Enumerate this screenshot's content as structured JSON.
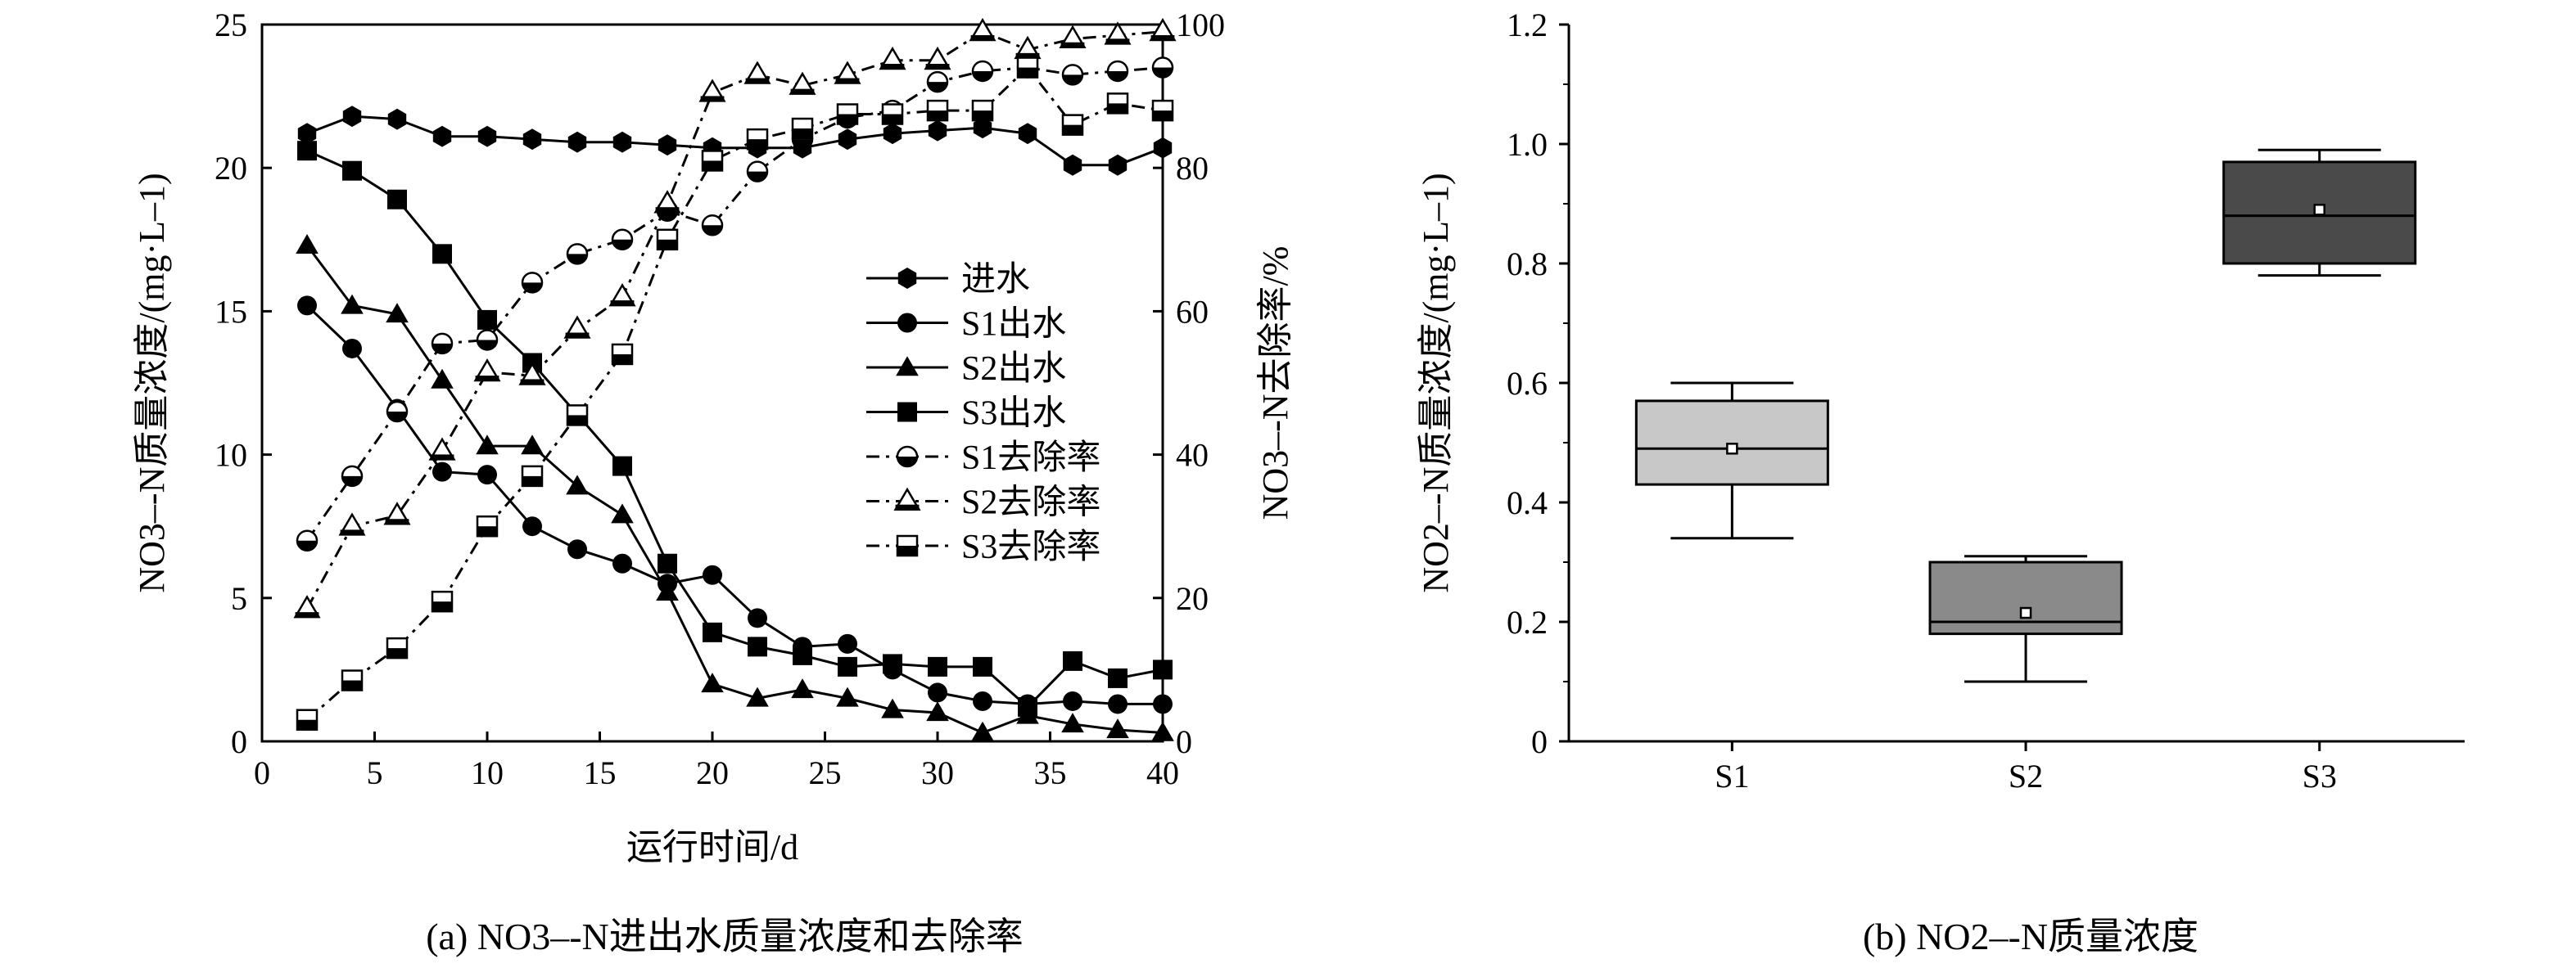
{
  "chart_data": [
    {
      "type": "line",
      "caption": "(a) NO3–-N进出水质量浓度和去除率",
      "xlabel": "运行时间/d",
      "ylabel_left": "NO3–-N质量浓度/(mg·L–1)",
      "ylabel_right": "NO3–-N去除率/%",
      "xlim": [
        0,
        40
      ],
      "ylim_left": [
        0,
        25
      ],
      "ylim_right": [
        0,
        100
      ],
      "x_ticks": [
        "0",
        "5",
        "10",
        "15",
        "20",
        "25",
        "30",
        "35",
        "40"
      ],
      "y_left_ticks": [
        "0",
        "5",
        "10",
        "15",
        "20",
        "25"
      ],
      "y_right_ticks": [
        "0",
        "20",
        "40",
        "60",
        "80",
        "100"
      ],
      "x": [
        2,
        4,
        6,
        8,
        10,
        12,
        14,
        16,
        18,
        20,
        22,
        24,
        26,
        28,
        30,
        32,
        34,
        36,
        38,
        40
      ],
      "series": [
        {
          "name": "进水",
          "axis": "left",
          "marker": "hexagon",
          "dash": "solid",
          "values": [
            21.2,
            21.8,
            21.7,
            21.1,
            21.1,
            21.0,
            20.9,
            20.9,
            20.8,
            20.7,
            20.7,
            20.7,
            21.0,
            21.2,
            21.3,
            21.4,
            21.2,
            20.1,
            20.1,
            20.7
          ]
        },
        {
          "name": "S1出水",
          "axis": "left",
          "marker": "circle",
          "dash": "solid",
          "values": [
            15.2,
            13.7,
            11.6,
            9.4,
            9.3,
            7.5,
            6.7,
            6.2,
            5.5,
            5.8,
            4.3,
            3.3,
            3.4,
            2.5,
            1.7,
            1.4,
            1.3,
            1.4,
            1.3,
            1.3
          ]
        },
        {
          "name": "S2出水",
          "axis": "left",
          "marker": "triangle",
          "dash": "solid",
          "values": [
            17.3,
            15.2,
            14.9,
            12.6,
            10.3,
            10.3,
            8.9,
            7.9,
            5.2,
            2.0,
            1.5,
            1.8,
            1.5,
            1.1,
            1.0,
            0.3,
            0.9,
            0.6,
            0.4,
            0.3
          ]
        },
        {
          "name": "S3出水",
          "axis": "left",
          "marker": "square",
          "dash": "solid",
          "values": [
            20.6,
            19.9,
            18.9,
            17.0,
            14.7,
            13.2,
            11.4,
            9.6,
            6.2,
            3.8,
            3.3,
            3.0,
            2.6,
            2.7,
            2.6,
            2.6,
            1.2,
            2.8,
            2.2,
            2.5
          ]
        },
        {
          "name": "S1去除率",
          "axis": "right",
          "marker": "half-circle",
          "dash": "dash",
          "values": [
            28,
            37,
            46,
            55.5,
            56,
            64,
            68,
            70,
            74,
            72,
            79.5,
            84,
            87,
            88,
            92,
            93.5,
            94,
            93,
            93.5,
            94
          ]
        },
        {
          "name": "S2去除率",
          "axis": "right",
          "marker": "half-triangle",
          "dash": "dash",
          "values": [
            18.5,
            30,
            31.5,
            40.5,
            51.5,
            51,
            57.5,
            62,
            75,
            90.5,
            93,
            91.5,
            93,
            95,
            95,
            99,
            96.5,
            98,
            98.5,
            99
          ]
        },
        {
          "name": "S3去除率",
          "axis": "right",
          "marker": "half-square",
          "dash": "dash",
          "values": [
            3,
            8.5,
            13,
            19.5,
            30,
            37,
            45.5,
            54,
            70,
            81,
            84,
            85.5,
            87.5,
            87.5,
            88,
            88,
            94,
            86,
            89,
            88
          ]
        }
      ],
      "legend": "center-right"
    },
    {
      "type": "box",
      "caption": "(b) NO2–-N质量浓度",
      "ylabel": "NO2–-N质量浓度/(mg·L–1)",
      "ylim": [
        0,
        1.2
      ],
      "y_ticks": [
        "0",
        "0.2",
        "0.4",
        "0.6",
        "0.8",
        "1.0",
        "1.2"
      ],
      "categories": [
        "S1",
        "S2",
        "S3"
      ],
      "boxes": [
        {
          "name": "S1",
          "whisker_low": 0.34,
          "q1": 0.43,
          "median": 0.49,
          "q3": 0.57,
          "whisker_high": 0.6,
          "mean": 0.49,
          "color": "#c8c8c8"
        },
        {
          "name": "S2",
          "whisker_low": 0.1,
          "q1": 0.18,
          "median": 0.2,
          "q3": 0.3,
          "whisker_high": 0.31,
          "mean": 0.215,
          "color": "#8a8a8a"
        },
        {
          "name": "S3",
          "whisker_low": 0.78,
          "q1": 0.8,
          "median": 0.88,
          "q3": 0.97,
          "whisker_high": 0.99,
          "mean": 0.89,
          "color": "#4a4a4a"
        }
      ]
    }
  ]
}
